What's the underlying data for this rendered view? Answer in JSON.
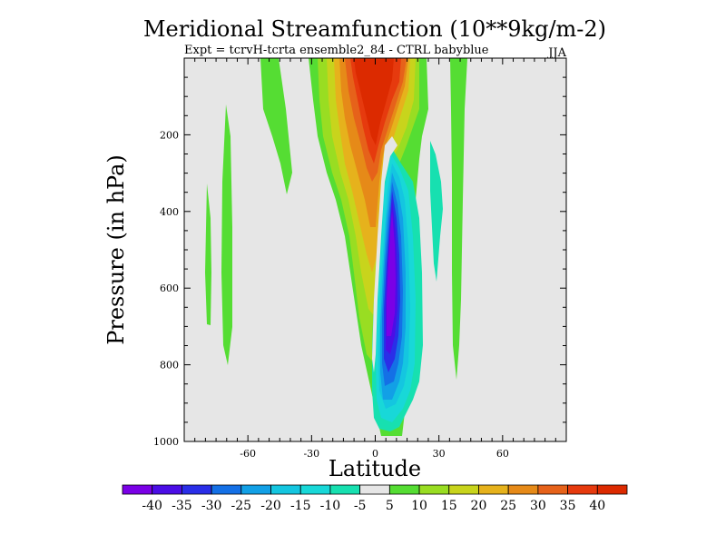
{
  "chart_data": {
    "type": "contour",
    "title": "Meridional Streamfunction (10**9kg/m-2)",
    "subtitle": "Expt = tcrvH-tcrta ensemble2_84 - CTRL babyblue",
    "season": "JJA",
    "xlabel": "Latitude",
    "ylabel": "Pressure (in hPa)",
    "xlim": [
      -90,
      90
    ],
    "ylim": [
      1000,
      0
    ],
    "x_ticks": [
      -60,
      -30,
      0,
      30,
      60
    ],
    "x_tick_labels": [
      "-60",
      "-30",
      "0",
      "30",
      "60"
    ],
    "y_ticks": [
      200,
      400,
      600,
      800,
      1000
    ],
    "y_tick_labels": [
      "200",
      "400",
      "600",
      "800",
      "1000"
    ],
    "background_color": "#e6e6e6",
    "colorbar": {
      "levels": [
        "-40",
        "-35",
        "-30",
        "-25",
        "-20",
        "-15",
        "-10",
        "-5",
        "5",
        "10",
        "15",
        "20",
        "25",
        "30",
        "35",
        "40"
      ],
      "colors": [
        "#7a00e6",
        "#4b0ee6",
        "#2a2ee8",
        "#1470e6",
        "#12a0e6",
        "#14c6e0",
        "#18d8d8",
        "#17e0b0",
        "#e6e6e6",
        "#55dd33",
        "#99dd22",
        "#c8d41c",
        "#e6b21c",
        "#e68a18",
        "#e6621a",
        "#e63a0e",
        "#dc2a00"
      ]
    },
    "approx_features": [
      {
        "name": "strong positive cell",
        "level": "40",
        "lat_range": [
          -7,
          4
        ],
        "p_range": [
          0,
          260
        ]
      },
      {
        "name": "strong negative cell",
        "level": "-40",
        "lat_range": [
          0,
          8
        ],
        "p_range": [
          330,
          820
        ]
      },
      {
        "name": "negative cell extent",
        "level": "-5",
        "lat_range": [
          0,
          20
        ],
        "p_range": [
          230,
          980
        ]
      },
      {
        "name": "northern subtropical band",
        "level": "5",
        "lat_range": [
          35,
          38
        ],
        "p_range": [
          0,
          850
        ]
      },
      {
        "name": "southern subtropical band",
        "level": "5",
        "lat_range": [
          -55,
          -45
        ],
        "p_range": [
          0,
          300
        ]
      },
      {
        "name": "southern midlatitude strip",
        "level": "5",
        "lat_range": [
          -66,
          -63
        ],
        "p_range": [
          150,
          800
        ]
      }
    ]
  }
}
